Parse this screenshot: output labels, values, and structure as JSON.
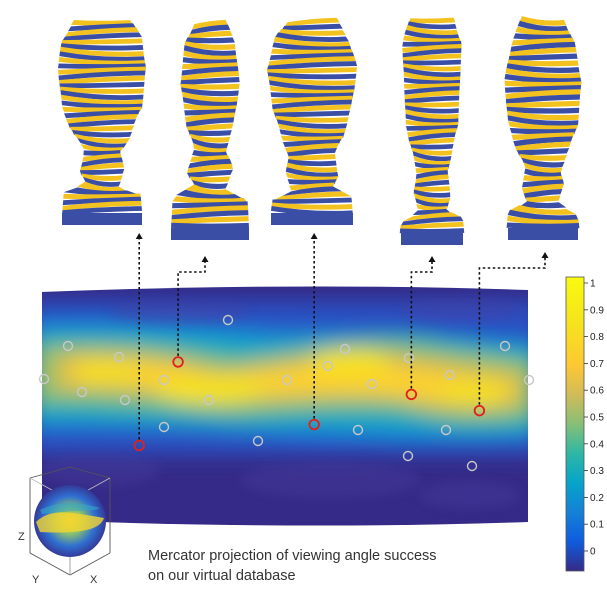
{
  "caption": {
    "line1": "Mercator projection of viewing angle success",
    "line2": "on our virtual database"
  },
  "axes_gizmo": {
    "z": "Z",
    "y": "Y",
    "x": "X"
  },
  "chart_data": {
    "type": "heatmap",
    "colormap": "parula",
    "stripe_colors": {
      "blue": "#3a4ea6",
      "yellow": "#f4c21e"
    },
    "colorbar": {
      "range": [
        0,
        1
      ],
      "ticks": [
        "0",
        "0.1",
        "0.2",
        "0.3",
        "0.4",
        "0.5",
        "0.6",
        "0.7",
        "0.8",
        "0.9",
        "1"
      ]
    },
    "highlighted_views": [
      {
        "view": 1,
        "x": 0.2,
        "y": 0.33
      },
      {
        "view": 2,
        "x": 0.28,
        "y": 0.69
      },
      {
        "view": 3,
        "x": 0.56,
        "y": 0.42
      },
      {
        "view": 4,
        "x": 0.76,
        "y": 0.55
      },
      {
        "view": 5,
        "x": 0.9,
        "y": 0.48
      }
    ]
  }
}
